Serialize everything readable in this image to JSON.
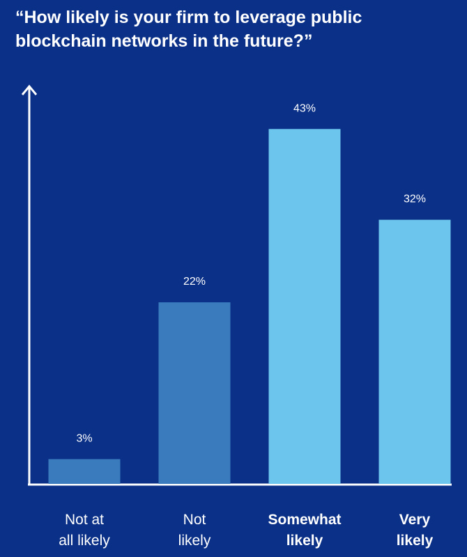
{
  "chart_data": {
    "type": "bar",
    "title": "“How likely is your firm to leverage public blockchain networks in the future?”",
    "categories": [
      "Not at\nall likely",
      "Not\nlikely",
      "Somewhat\nlikely",
      "Very\nlikely"
    ],
    "values": [
      3,
      22,
      43,
      32
    ],
    "value_labels": [
      "3%",
      "22%",
      "43%",
      "32%"
    ],
    "colors": [
      "#3a7bbd",
      "#3a7bbd",
      "#6cc5ec",
      "#6cc5ec"
    ],
    "ylim": [
      0,
      48
    ]
  }
}
